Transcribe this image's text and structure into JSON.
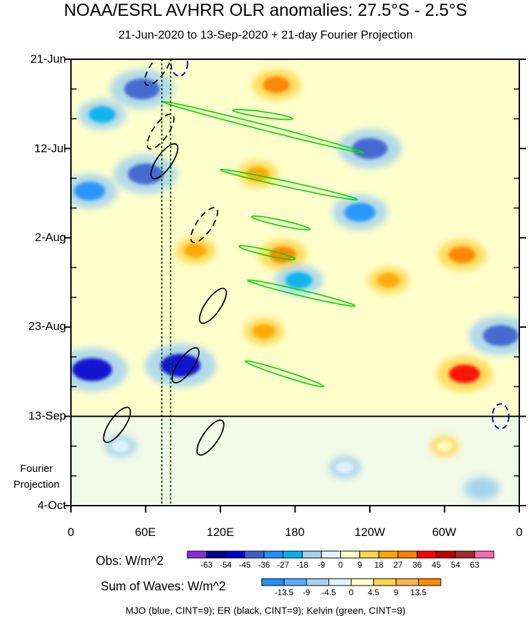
{
  "title": "NOAA/ESRL AVHRR OLR anomalies: 27.5°S - 2.5°S",
  "subtitle": "21-Jun-2020 to 13-Sep-2020 + 21-day Fourier Projection",
  "footer": "MJO (blue, CINT=9); ER (black, CINT=9); Kelvin (green, CINT=9)",
  "projection_label": [
    "Fourier",
    "Projection"
  ],
  "chart_data": {
    "type": "heatmap",
    "title": "NOAA/ESRL AVHRR OLR anomalies: 27.5°S - 2.5°S",
    "subtitle": "21-Jun-2020 to 13-Sep-2020 + 21-day Fourier Projection",
    "x_axis": {
      "ticks": [
        "0",
        "60E",
        "120E",
        "180",
        "120W",
        "60W",
        "0"
      ],
      "range_deg_east": [
        0,
        360
      ]
    },
    "y_axis": {
      "ticks": [
        "21-Jun",
        "12-Jul",
        "2-Aug",
        "23-Aug",
        "13-Sep",
        "4-Oct"
      ],
      "range": [
        "21-Jun-2020",
        "4-Oct-2020"
      ],
      "direction": "time increasing downward"
    },
    "observation_end": "13-Sep-2020",
    "dotted_reference_lines_deg_east": [
      73,
      80
    ],
    "obs_colorbar": {
      "label": "Obs: W/m^2",
      "levels": [
        "-63",
        "-54",
        "-45",
        "-36",
        "-27",
        "-18",
        "-9",
        "0",
        "9",
        "18",
        "27",
        "36",
        "45",
        "54",
        "63"
      ],
      "colors": [
        "#8a2be2",
        "#00008b",
        "#0000cd",
        "#3a5fcd",
        "#1e90ff",
        "#00b2ee",
        "#a4d3ee",
        "#dff4ff",
        "#ffffcc",
        "#ffd54a",
        "#ffa500",
        "#ff7f00",
        "#ff0000",
        "#c00000",
        "#a52a2a",
        "#ff69b4"
      ]
    },
    "waves_colorbar": {
      "label": "Sum of Waves: W/m^2",
      "levels": [
        "-13.5",
        "-9",
        "-4.5",
        "0",
        "4.5",
        "9",
        "13.5"
      ],
      "colors": [
        "#1e90ff",
        "#5aaeff",
        "#a4d3ee",
        "#dff4ff",
        "#ffffcc",
        "#ffd54a",
        "#ffb347",
        "#ff8c00"
      ]
    },
    "contours": {
      "MJO": {
        "color": "#0000cd",
        "cint": 9
      },
      "ER": {
        "color": "#000000",
        "cint": 9
      },
      "Kelvin": {
        "color": "#00dd00",
        "cint": 9
      }
    },
    "anomaly_features": [
      {
        "lon": 57,
        "date": "28-Jun-2020",
        "value": -45
      },
      {
        "lon": 60,
        "date": "18-Jul-2020",
        "value": -45
      },
      {
        "lon": 15,
        "date": "22-Jul-2020",
        "value": -36
      },
      {
        "lon": 25,
        "date": "4-Jul-2020",
        "value": -27
      },
      {
        "lon": 17,
        "date": "2-Sep-2020",
        "value": -54
      },
      {
        "lon": 88,
        "date": "1-Sep-2020",
        "value": -54
      },
      {
        "lon": 165,
        "date": "27-Jun-2020",
        "value": 27
      },
      {
        "lon": 150,
        "date": "18-Jul-2020",
        "value": 18
      },
      {
        "lon": 170,
        "date": "6-Aug-2020",
        "value": 27
      },
      {
        "lon": 155,
        "date": "24-Aug-2020",
        "value": 18
      },
      {
        "lon": 240,
        "date": "12-Jul-2020",
        "value": -45
      },
      {
        "lon": 232,
        "date": "27-Jul-2020",
        "value": -36
      },
      {
        "lon": 255,
        "date": "12-Aug-2020",
        "value": 18
      },
      {
        "lon": 183,
        "date": "12-Aug-2020",
        "value": -27
      },
      {
        "lon": 314,
        "date": "6-Aug-2020",
        "value": 27
      },
      {
        "lon": 316,
        "date": "3-Sep-2020",
        "value": 36
      },
      {
        "lon": 345,
        "date": "25-Aug-2020",
        "value": -45
      },
      {
        "lon": 100,
        "date": "5-Aug-2020",
        "value": 18
      },
      {
        "lon": 40,
        "date": "20-Sep-2020",
        "value": -9
      },
      {
        "lon": 330,
        "date": "30-Sep-2020",
        "value": -13.5
      },
      {
        "lon": 220,
        "date": "25-Sep-2020",
        "value": -9
      },
      {
        "lon": 300,
        "date": "20-Sep-2020",
        "value": 4.5
      }
    ],
    "mjo_contours": [
      {
        "lon": 87,
        "date": "22-Jun-2020",
        "sign": "negative"
      },
      {
        "lon": 345,
        "date": "13-Sep-2020",
        "sign": "negative"
      }
    ],
    "er_contours": [
      {
        "lon": 75,
        "date": "15-Jul-2020",
        "sign": "positive"
      },
      {
        "lon": 72,
        "date": "8-Jul-2020",
        "sign": "negative"
      },
      {
        "lon": 70,
        "date": "23-Jun-2020",
        "sign": "negative"
      },
      {
        "lon": 107,
        "date": "30-Jul-2020",
        "sign": "negative"
      },
      {
        "lon": 114,
        "date": "18-Aug-2020",
        "sign": "positive"
      },
      {
        "lon": 92,
        "date": "1-Sep-2020",
        "sign": "positive"
      },
      {
        "lon": 37,
        "date": "15-Sep-2020",
        "sign": "positive"
      },
      {
        "lon": 112,
        "date": "18-Sep-2020",
        "sign": "positive"
      }
    ],
    "kelvin_contours": [
      {
        "start": {
          "lon": 74,
          "date": "1-Jul-2020"
        },
        "end": {
          "lon": 235,
          "date": "13-Jul-2020"
        }
      },
      {
        "start": {
          "lon": 130,
          "date": "3-Jul-2020"
        },
        "end": {
          "lon": 178,
          "date": "5-Jul-2020"
        }
      },
      {
        "start": {
          "lon": 120,
          "date": "17-Jul-2020"
        },
        "end": {
          "lon": 230,
          "date": "24-Jul-2020"
        }
      },
      {
        "start": {
          "lon": 145,
          "date": "28-Jul-2020"
        },
        "end": {
          "lon": 192,
          "date": "31-Jul-2020"
        }
      },
      {
        "start": {
          "lon": 135,
          "date": "4-Aug-2020"
        },
        "end": {
          "lon": 180,
          "date": "7-Aug-2020"
        }
      },
      {
        "start": {
          "lon": 142,
          "date": "12-Aug-2020"
        },
        "end": {
          "lon": 228,
          "date": "18-Aug-2020"
        }
      },
      {
        "start": {
          "lon": 140,
          "date": "31-Aug-2020"
        },
        "end": {
          "lon": 203,
          "date": "6-Sep-2020"
        }
      }
    ]
  }
}
